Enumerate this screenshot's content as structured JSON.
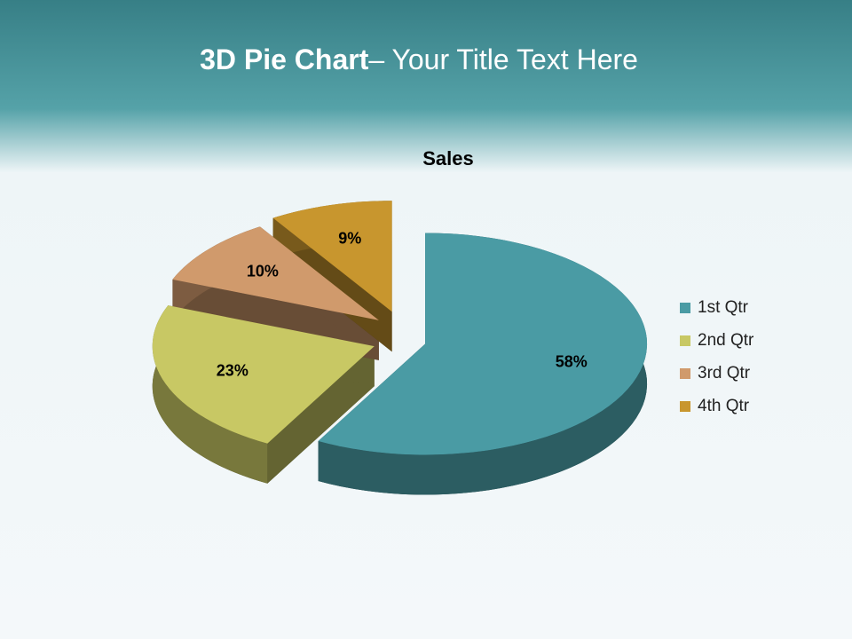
{
  "header": {
    "title_bold": "3D Pie Chart",
    "title_rest": "– Your Title Text Here"
  },
  "chart_data": {
    "type": "pie",
    "title": "Sales",
    "categories": [
      "1st Qtr",
      "2nd Qtr",
      "3rd Qtr",
      "4th Qtr"
    ],
    "values": [
      58,
      23,
      10,
      9
    ],
    "value_labels": [
      "58%",
      "23%",
      "10%",
      "9%"
    ],
    "colors": [
      "#4a9ba4",
      "#c8c864",
      "#d09a6c",
      "#c8962e"
    ],
    "legend": "right"
  }
}
